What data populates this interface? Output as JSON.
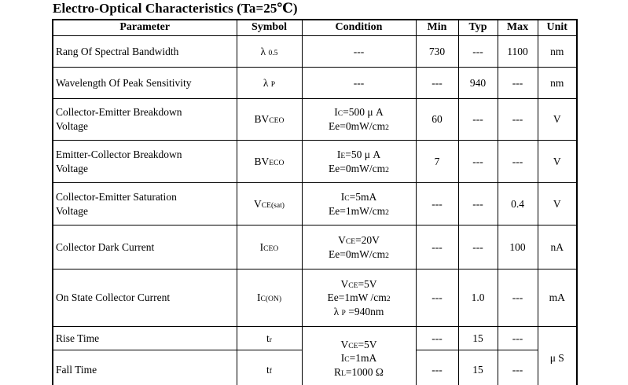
{
  "page": {
    "title": "Electro-Optical Characteristics (Ta=25℃)"
  },
  "table": {
    "columns": [
      "Parameter",
      "Symbol",
      "Condition",
      "Min",
      "Typ",
      "Max",
      "Unit"
    ],
    "rows": [
      {
        "parameter": "Rang Of Spectral Bandwidth",
        "symbol": "λ _{0.5}",
        "condition": "---",
        "min": "730",
        "typ": "---",
        "max": "1100",
        "unit": "nm"
      },
      {
        "parameter": "Wavelength Of Peak Sensitivity",
        "symbol": "λ _{P}",
        "condition": "---",
        "min": "---",
        "typ": "940",
        "max": "---",
        "unit": "nm"
      },
      {
        "parameter": [
          "Collector-Emitter Breakdown",
          "Voltage"
        ],
        "symbol": "BV_{CEO}",
        "condition": [
          "I_{C}=500 μ A",
          "Ee=0mW/cm^{2}"
        ],
        "min": "60",
        "typ": "---",
        "max": "---",
        "unit": "V"
      },
      {
        "parameter": [
          "Emitter-Collector Breakdown",
          "Voltage"
        ],
        "symbol": "BV_{ECO}",
        "condition": [
          "I_{E}=50 μ A",
          "Ee=0mW/cm^{2}"
        ],
        "min": "7",
        "typ": "---",
        "max": "---",
        "unit": "V"
      },
      {
        "parameter": [
          "Collector-Emitter Saturation",
          "Voltage"
        ],
        "symbol": "V_{CE(sat)}",
        "condition": [
          "I_{C}=5mA",
          "Ee=1mW/cm^{2}"
        ],
        "min": "---",
        "typ": "---",
        "max": "0.4",
        "unit": "V"
      },
      {
        "parameter": "Collector Dark Current",
        "symbol": "I_{CEO}",
        "condition": [
          "V_{CE}=20V",
          "Ee=0mW/cm^{2}"
        ],
        "min": "---",
        "typ": "---",
        "max": "100",
        "unit": "nA"
      },
      {
        "parameter": "On State Collector Current",
        "symbol": "I_{C(ON)}",
        "condition": [
          "V_{CE}=5V",
          "Ee=1mW /cm^{2}",
          "λ _{P} =940nm"
        ],
        "min": "---",
        "typ": "1.0",
        "max": "---",
        "unit": "mA"
      },
      {
        "parameter": "Rise Time",
        "symbol": "t_{r}",
        "min": "---",
        "typ": "15",
        "max": "---"
      },
      {
        "parameter": "Fall Time",
        "symbol": "t_{f}",
        "min": "---",
        "typ": "15",
        "max": "---"
      }
    ],
    "merged": {
      "rise_fall_condition": [
        "V_{CE}=5V",
        "I_{C}=1mA",
        "R_{L}=1000 Ω"
      ],
      "rise_fall_unit": "μ S"
    }
  }
}
